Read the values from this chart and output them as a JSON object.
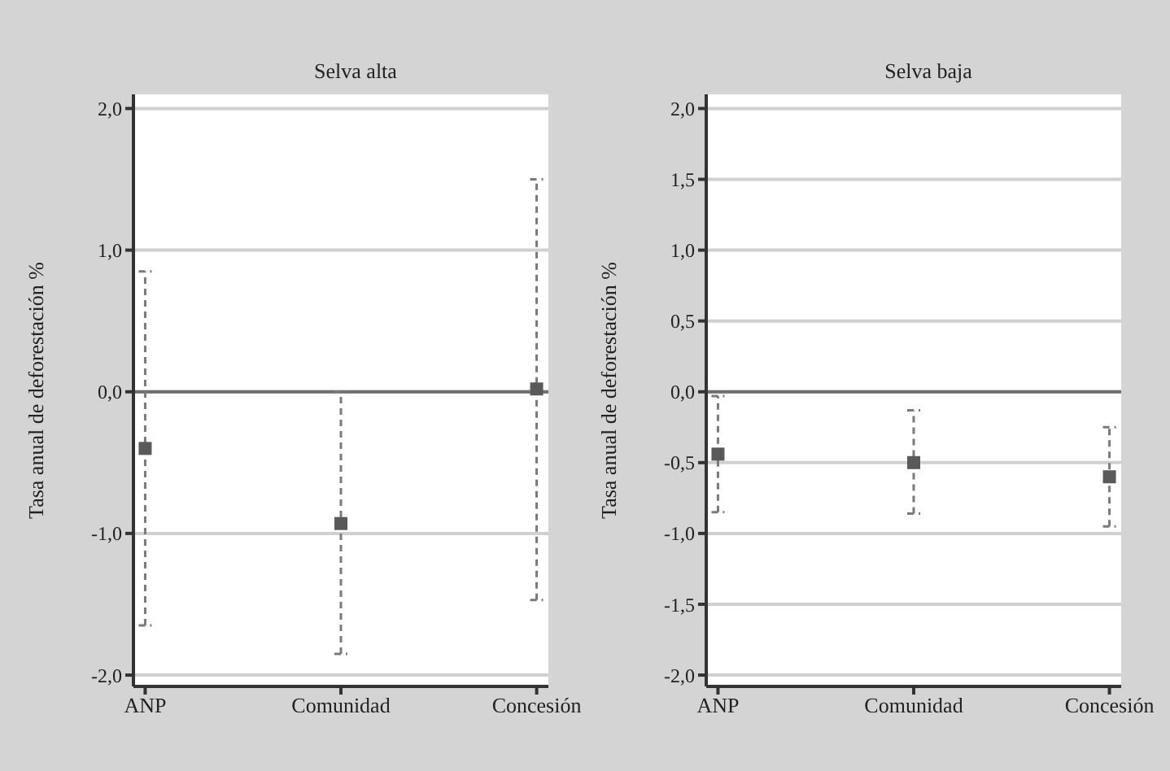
{
  "chart_data": [
    {
      "type": "scatter",
      "title": "Selva alta",
      "ylabel": "Tasa anual de deforestación %",
      "categories": [
        "ANP",
        "Comunidad",
        "Concesión"
      ],
      "marker": "square",
      "grid": "y",
      "series": [
        {
          "color": "#595959",
          "values": [
            -0.4,
            -0.93,
            0.02
          ],
          "errors": [
            [
              -1.65,
              0.85
            ],
            [
              -1.85,
              0.0
            ],
            [
              -1.47,
              1.5
            ]
          ]
        }
      ],
      "ylim": [
        -2.08,
        2.1
      ],
      "yticks": [
        {
          "value": -2,
          "label": "-2,0"
        },
        {
          "value": -1,
          "label": "-1,0"
        },
        {
          "value": 0,
          "label": "0,0"
        },
        {
          "value": 1,
          "label": "1,0"
        },
        {
          "value": 2,
          "label": "2,0"
        }
      ],
      "ref_lines": [
        {
          "axis": "y",
          "value": 0,
          "color": "#6e6e6e"
        }
      ]
    },
    {
      "type": "scatter",
      "title": "Selva baja",
      "ylabel": "Tasa anual de deforestación %",
      "categories": [
        "ANP",
        "Comunidad",
        "Concesión"
      ],
      "marker": "square",
      "grid": "y",
      "series": [
        {
          "color": "#595959",
          "values": [
            -0.44,
            -0.5,
            -0.6
          ],
          "errors": [
            [
              -0.85,
              -0.03
            ],
            [
              -0.86,
              -0.13
            ],
            [
              -0.95,
              -0.25
            ]
          ]
        }
      ],
      "ylim": [
        -2.08,
        2.1
      ],
      "yticks": [
        {
          "value": -2,
          "label": "-2,0"
        },
        {
          "value": -1.5,
          "label": "-1,5"
        },
        {
          "value": -1,
          "label": "-1,0"
        },
        {
          "value": -0.5,
          "label": "-0,5"
        },
        {
          "value": 0,
          "label": "0,0"
        },
        {
          "value": 0.5,
          "label": "0,5"
        },
        {
          "value": 1,
          "label": "1,0"
        },
        {
          "value": 1.5,
          "label": "1,5"
        },
        {
          "value": 2,
          "label": "2,0"
        }
      ],
      "ref_lines": [
        {
          "axis": "y",
          "value": 0,
          "color": "#6e6e6e"
        }
      ]
    }
  ]
}
